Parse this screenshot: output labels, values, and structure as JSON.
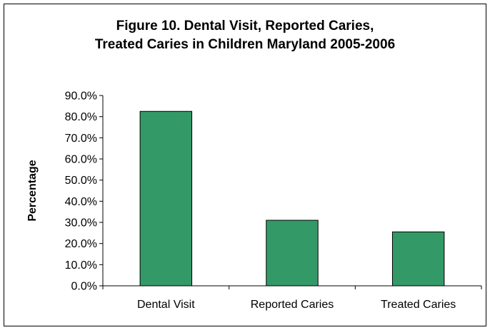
{
  "chart_data": {
    "type": "bar",
    "title_lines": [
      "Figure 10. Dental Visit, Reported Caries,",
      "Treated Caries in Children  Maryland 2005-2006"
    ],
    "categories": [
      "Dental Visit",
      "Reported Caries",
      "Treated Caries"
    ],
    "values": [
      82.5,
      31.0,
      25.5
    ],
    "ylabel": "Percentage",
    "xlabel": "",
    "ylim": [
      0,
      90
    ],
    "ytick_values": [
      0,
      10,
      20,
      30,
      40,
      50,
      60,
      70,
      80,
      90
    ],
    "ytick_labels": [
      "0.0%",
      "10.0%",
      "20.0%",
      "30.0%",
      "40.0%",
      "50.0%",
      "60.0%",
      "70.0%",
      "80.0%",
      "90.0%"
    ],
    "bar_color": "#339966",
    "bar_edge_color": "#000000",
    "grid": false,
    "legend": "none"
  }
}
